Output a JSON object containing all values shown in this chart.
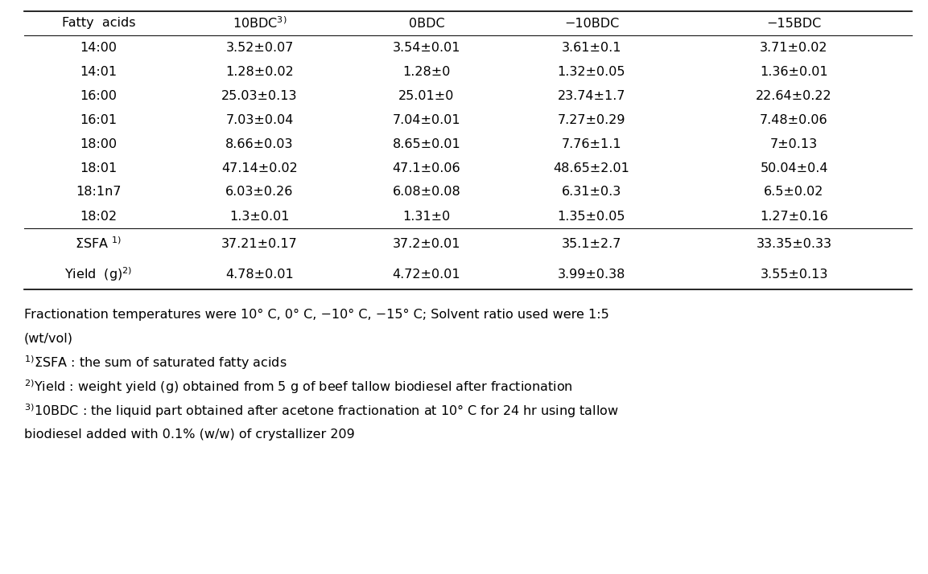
{
  "headers": [
    "Fatty  acids",
    "10BDC$^{3)}$",
    "0BDC",
    "−10BDC",
    "−15BDC"
  ],
  "rows": [
    [
      "14:00",
      "3.52±0.07",
      "3.54±0.01",
      "3.61±0.1",
      "3.71±0.02"
    ],
    [
      "14:01",
      "1.28±0.02",
      "1.28±0",
      "1.32±0.05",
      "1.36±0.01"
    ],
    [
      "16:00",
      "25.03±0.13",
      "25.01±0",
      "23.74±1.7",
      "22.64±0.22"
    ],
    [
      "16:01",
      "7.03±0.04",
      "7.04±0.01",
      "7.27±0.29",
      "7.48±0.06"
    ],
    [
      "18:00",
      "8.66±0.03",
      "8.65±0.01",
      "7.76±1.1",
      "7±0.13"
    ],
    [
      "18:01",
      "47.14±0.02",
      "47.1±0.06",
      "48.65±2.01",
      "50.04±0.4"
    ],
    [
      "18:1n7",
      "6.03±0.26",
      "6.08±0.08",
      "6.31±0.3",
      "6.5±0.02"
    ],
    [
      "18:02",
      "1.3±0.01",
      "1.31±0",
      "1.35±0.05",
      "1.27±0.16"
    ]
  ],
  "summary_rows": [
    [
      "ΣSFA $^{1)}$",
      "37.21±0.17",
      "37.2±0.01",
      "35.1±2.7",
      "33.35±0.33"
    ],
    [
      "Yield  (g)$^{2)}$",
      "4.78±0.01",
      "4.72±0.01",
      "3.99±0.38",
      "3.55±0.13"
    ]
  ],
  "footnotes": [
    "Fractionation temperatures were 10° C, 0° C, −10° C, −15° C; Solvent ratio used were 1:5",
    "(wt/vol)",
    "$^{1)}$ΣSFA : the sum of saturated fatty acids",
    "$^{2)}$Yield : weight yield (g) obtained from 5 g of beef tallow biodiesel after fractionation",
    "$^{3)}$10BDC : the liquid part obtained after acetone fractionation at 10° C for 24 hr using tallow",
    "biodiesel added with 0.1% (w/w) of crystallizer 209"
  ],
  "fig_width": 11.53,
  "fig_height": 7.14,
  "dpi": 100,
  "font_size": 11.5,
  "footnote_font_size": 11.5,
  "background_color": "#ffffff",
  "text_color": "#000000"
}
